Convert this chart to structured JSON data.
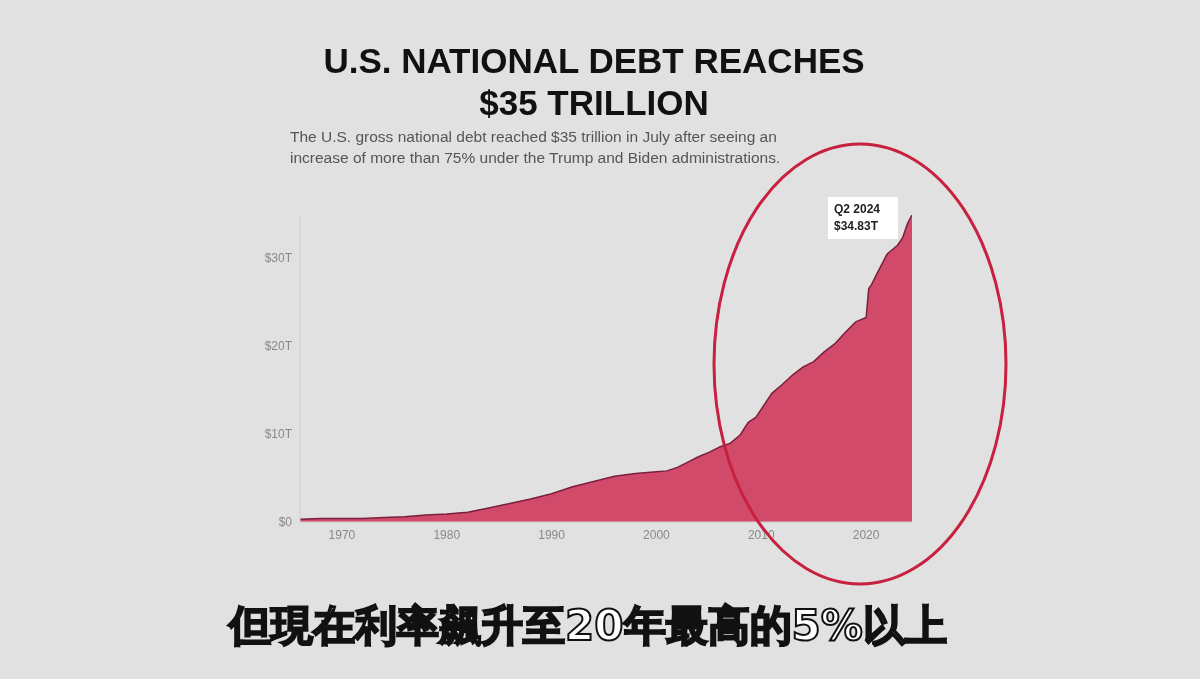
{
  "chart_data": {
    "type": "area",
    "title": "U.S. NATIONAL DEBT REACHES\n$35 TRILLION",
    "subtitle": "The U.S. gross national debt reached $35 trillion in July after seeing an\nincrease of more than 75% under the Trump and Biden administrations.",
    "x": [
      1966,
      1968,
      1970,
      1972,
      1974,
      1976,
      1978,
      1980,
      1982,
      1984,
      1986,
      1988,
      1990,
      1992,
      1994,
      1996,
      1998,
      2000,
      2001,
      2002,
      2003,
      2004,
      2005,
      2006,
      2007,
      2008,
      2008.75,
      2009.5,
      2010,
      2011,
      2012,
      2013,
      2014,
      2015,
      2016,
      2017,
      2018,
      2019,
      2020,
      2020.25,
      2020.5,
      2021,
      2022,
      2023,
      2023.5,
      2023.75,
      2024,
      2024.375
    ],
    "series": [
      {
        "color": "#d24a6a",
        "values": [
          0.3,
          0.4,
          0.4,
          0.4,
          0.5,
          0.6,
          0.8,
          0.9,
          1.1,
          1.6,
          2.1,
          2.6,
          3.2,
          4.0,
          4.6,
          5.2,
          5.5,
          5.7,
          5.8,
          6.2,
          6.8,
          7.4,
          7.9,
          8.5,
          8.9,
          9.9,
          11.3,
          11.9,
          12.8,
          14.6,
          15.6,
          16.7,
          17.6,
          18.2,
          19.3,
          20.2,
          21.5,
          22.7,
          23.2,
          26.5,
          26.9,
          28.1,
          30.4,
          31.4,
          32.3,
          33.2,
          34.0,
          34.83
        ]
      }
    ],
    "xlim": [
      1966,
      2024.375
    ],
    "xticks": [
      1970,
      1980,
      1990,
      2000,
      2010,
      2020
    ],
    "ylim": [
      0,
      34.83
    ],
    "yticks": [
      {
        "value": 0,
        "label": "$0"
      },
      {
        "value": 10,
        "label": "$10T"
      },
      {
        "value": 20,
        "label": "$20T"
      },
      {
        "value": 30,
        "label": "$30T"
      }
    ],
    "grid": false,
    "legend": false,
    "annotations": [
      {
        "text": "Q2 2024\n$34.83T",
        "x": 2024.375,
        "y": 34.83
      },
      "但現在利率飆升至20年最高的5%以上"
    ]
  }
}
